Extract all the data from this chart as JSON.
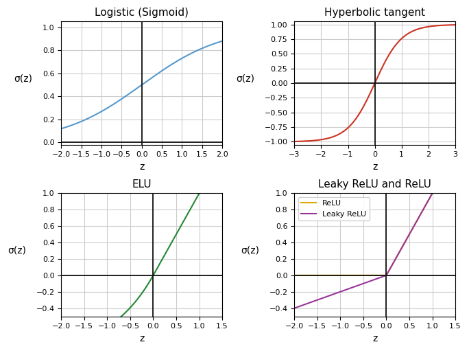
{
  "sigmoid": {
    "title": "Logistic (Sigmoid)",
    "xlim": [
      -2.0,
      2.0
    ],
    "ylim": [
      -0.02,
      1.05
    ],
    "color": "#5599cc",
    "xlabel": "z",
    "ylabel": "σ(z)",
    "xticks": [
      -2.0,
      -1.5,
      -1.0,
      -0.5,
      0.0,
      0.5,
      1.0,
      1.5,
      2.0
    ]
  },
  "tanh": {
    "title": "Hyperbolic tangent",
    "xlim": [
      -3.0,
      3.0
    ],
    "ylim": [
      -1.05,
      1.05
    ],
    "color": "#cc3322",
    "xlabel": "z",
    "ylabel": "σ(z)",
    "xticks": [
      -3,
      -2,
      -1,
      0,
      1,
      2,
      3
    ],
    "yticks": [
      -1.0,
      -0.75,
      -0.5,
      -0.25,
      0.0,
      0.25,
      0.5,
      0.75,
      1.0
    ]
  },
  "elu": {
    "title": "ELU",
    "xlim": [
      -2.0,
      1.5
    ],
    "ylim": [
      -0.5,
      1.0
    ],
    "color": "#228833",
    "xlabel": "z",
    "ylabel": "σ(z)",
    "alpha": 1.0,
    "xticks": [
      -2.0,
      -1.5,
      -1.0,
      -0.5,
      0.0,
      0.5,
      1.0,
      1.5
    ]
  },
  "leaky_relu": {
    "title": "Leaky ReLU and ReLU",
    "xlim": [
      -2.0,
      1.5
    ],
    "ylim": [
      -0.5,
      1.0
    ],
    "color_relu": "#ddaa00",
    "color_leaky": "#993399",
    "xlabel": "z",
    "ylabel": "σ(z)",
    "label_relu": "ReLU",
    "label_leaky": "Leaky ReLU",
    "leaky_slope": 0.2,
    "xticks": [
      -2.0,
      -1.5,
      -1.0,
      -0.5,
      0.0,
      0.5,
      1.0,
      1.5
    ]
  },
  "figsize": [
    6.84,
    5.11
  ],
  "dpi": 100,
  "grid_color": "#cccccc",
  "axline_color": "#111111",
  "background_color": "#ffffff"
}
